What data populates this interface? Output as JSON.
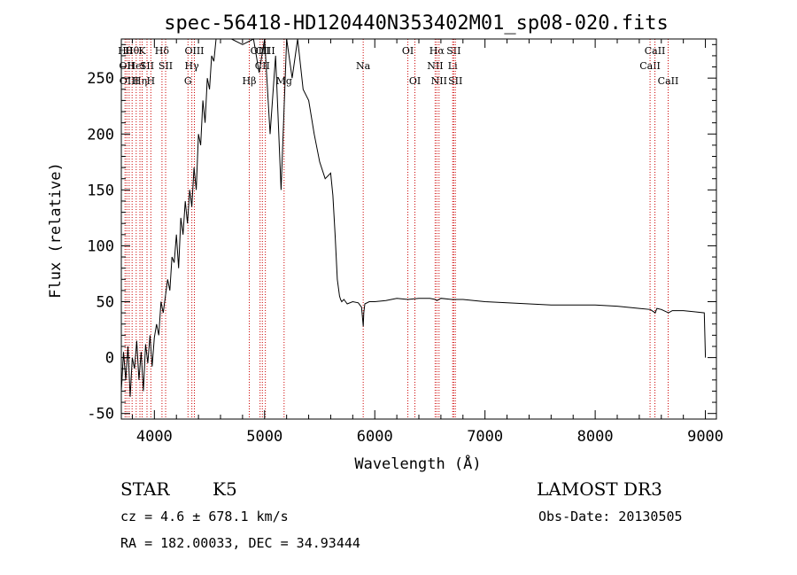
{
  "chart_data": {
    "type": "line",
    "title": "spec-56418-HD120440N353402M01_sp08-020.fits",
    "xlabel": "Wavelength (Å)",
    "ylabel": "Flux (relative)",
    "xlim": [
      3700,
      9100
    ],
    "ylim": [
      -55,
      285
    ],
    "xticks": [
      4000,
      5000,
      6000,
      7000,
      8000,
      9000
    ],
    "yticks": [
      -50,
      0,
      50,
      100,
      150,
      200,
      250
    ],
    "line_color": "#000000",
    "marker_color": "#cc0000",
    "series": [
      {
        "x": [
          3700,
          3720,
          3740,
          3760,
          3780,
          3800,
          3820,
          3840,
          3860,
          3880,
          3900,
          3920,
          3940,
          3960,
          3980,
          4000,
          4020,
          4040,
          4060,
          4080,
          4100,
          4120,
          4140,
          4160,
          4180,
          4200,
          4220,
          4240,
          4260,
          4280,
          4300,
          4320,
          4340,
          4360,
          4380,
          4400,
          4420,
          4440,
          4460,
          4480,
          4500,
          4520,
          4540,
          4560,
          4600,
          4700,
          4800,
          4900,
          4950,
          5000,
          5050,
          5100,
          5150,
          5200,
          5250,
          5300,
          5350,
          5400,
          5450,
          5500,
          5550,
          5600,
          5620,
          5640,
          5660,
          5680,
          5690,
          5700,
          5720,
          5750,
          5800,
          5850,
          5880,
          5895,
          5900,
          5910,
          5950,
          6000,
          6100,
          6200,
          6300,
          6400,
          6500,
          6550,
          6563,
          6600,
          6700,
          6800,
          6900,
          7000,
          7200,
          7400,
          7600,
          7800,
          8000,
          8200,
          8400,
          8500,
          8545,
          8560,
          8600,
          8665,
          8700,
          8800,
          8900,
          8990,
          9000
        ],
        "y": [
          -30,
          5,
          -20,
          10,
          -35,
          0,
          -10,
          15,
          -20,
          5,
          -30,
          12,
          -5,
          20,
          -8,
          18,
          30,
          20,
          50,
          40,
          55,
          70,
          60,
          90,
          85,
          110,
          80,
          125,
          110,
          140,
          120,
          150,
          135,
          170,
          150,
          200,
          190,
          230,
          210,
          250,
          240,
          270,
          265,
          285,
          285,
          285,
          280,
          285,
          255,
          285,
          200,
          270,
          150,
          285,
          250,
          285,
          240,
          230,
          200,
          175,
          160,
          165,
          145,
          110,
          70,
          55,
          52,
          50,
          52,
          48,
          50,
          49,
          45,
          28,
          40,
          48,
          50,
          50,
          51,
          53,
          52,
          53,
          53,
          52,
          51,
          53,
          52,
          52,
          51,
          50,
          49,
          48,
          47,
          47,
          47,
          46,
          44,
          43,
          40,
          44,
          43,
          40,
          42,
          42,
          41,
          40,
          0
        ]
      }
    ],
    "line_markers": [
      {
        "x": 3734,
        "row": 0,
        "label": "Hθ"
      },
      {
        "x": 3750,
        "row": 1,
        "label": "OII"
      },
      {
        "x": 3771,
        "row": 2,
        "label": "OIII"
      },
      {
        "x": 3798,
        "row": 0,
        "label": "Hθ"
      },
      {
        "x": 3835,
        "row": 1,
        "label": "HeI"
      },
      {
        "x": 3869,
        "row": 2,
        "label": "Hη"
      },
      {
        "x": 3889,
        "row": 0,
        "label": "K"
      },
      {
        "x": 3933,
        "row": 1,
        "label": "SII"
      },
      {
        "x": 3968,
        "row": 2,
        "label": "H"
      },
      {
        "x": 4069,
        "row": 0,
        "label": "Hδ"
      },
      {
        "x": 4102,
        "row": 1,
        "label": "SII"
      },
      {
        "x": 4305,
        "row": 2,
        "label": "G"
      },
      {
        "x": 4340,
        "row": 1,
        "label": "Hγ"
      },
      {
        "x": 4363,
        "row": 0,
        "label": "OIII"
      },
      {
        "x": 4861,
        "row": 2,
        "label": "Hβ"
      },
      {
        "x": 4959,
        "row": 0,
        "label": "OIII"
      },
      {
        "x": 4980,
        "row": 1,
        "label": "CII"
      },
      {
        "x": 5007,
        "row": 0,
        "label": "OIII"
      },
      {
        "x": 5177,
        "row": 2,
        "label": "Mg"
      },
      {
        "x": 5895,
        "row": 1,
        "label": "Na"
      },
      {
        "x": 6300,
        "row": 0,
        "label": "OI"
      },
      {
        "x": 6364,
        "row": 2,
        "label": "OI"
      },
      {
        "x": 6548,
        "row": 1,
        "label": "NII"
      },
      {
        "x": 6563,
        "row": 0,
        "label": "Hα"
      },
      {
        "x": 6583,
        "row": 2,
        "label": "NII"
      },
      {
        "x": 6707,
        "row": 1,
        "label": "Li"
      },
      {
        "x": 6716,
        "row": 0,
        "label": "SII"
      },
      {
        "x": 6731,
        "row": 2,
        "label": "SII"
      },
      {
        "x": 8498,
        "row": 1,
        "label": "CaII"
      },
      {
        "x": 8542,
        "row": 0,
        "label": "CaII"
      },
      {
        "x": 8662,
        "row": 2,
        "label": "CaII"
      }
    ]
  },
  "info": {
    "object_type": "STAR",
    "subclass": "K5",
    "survey": "LAMOST DR3",
    "redshift": "cz = 4.6 ± 678.1 km/s",
    "obs_date": "Obs-Date: 20130505",
    "coords": "RA = 182.00033, DEC =  34.93444"
  }
}
